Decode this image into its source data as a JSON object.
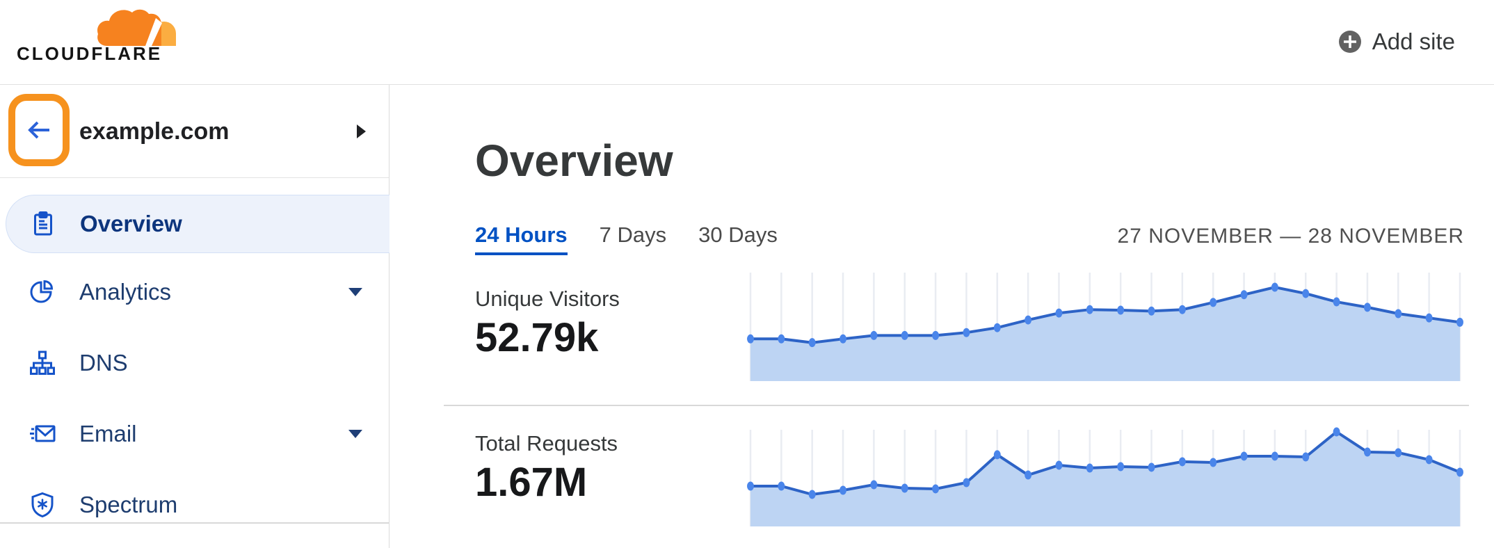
{
  "header": {
    "logo_text": "CLOUDFLARE",
    "add_site_label": "Add site"
  },
  "sidebar": {
    "site_name": "example.com",
    "items": [
      {
        "label": "Overview",
        "icon": "clipboard",
        "selected": true,
        "has_dropdown": false
      },
      {
        "label": "Analytics",
        "icon": "pie-chart",
        "selected": false,
        "has_dropdown": true
      },
      {
        "label": "DNS",
        "icon": "sitemap",
        "selected": false,
        "has_dropdown": false
      },
      {
        "label": "Email",
        "icon": "envelope",
        "selected": false,
        "has_dropdown": true
      },
      {
        "label": "Spectrum",
        "icon": "shield",
        "selected": false,
        "has_dropdown": false
      }
    ]
  },
  "main": {
    "title": "Overview",
    "tabs": [
      {
        "label": "24 Hours",
        "active": true
      },
      {
        "label": "7 Days",
        "active": false
      },
      {
        "label": "30 Days",
        "active": false
      }
    ],
    "date_range": "27 NOVEMBER — 28 NOVEMBER",
    "metrics": [
      {
        "label": "Unique Visitors",
        "value": "52.79k"
      },
      {
        "label": "Total Requests",
        "value": "1.67M"
      }
    ]
  },
  "colors": {
    "brand_orange": "#F6821F",
    "brand_orange_light": "#FBAD41",
    "annotation_orange": "#F6921E",
    "link_blue": "#0051c3",
    "sidebar_icon_blue": "#1553c9",
    "sidebar_text_navy": "#1e3d6f",
    "selected_pill_bg": "#edf2fb",
    "chart_grid": "#e9ecf2",
    "chart_area": "#bdd4f3",
    "chart_line": "#2d63c6",
    "chart_dot": "#4a85ea"
  },
  "chart_data": [
    {
      "type": "area",
      "title": "Unique Visitors",
      "total_displayed": "52.79k",
      "time_range": "24 Hours (27 November – 28 November)",
      "n_points": 24,
      "unit": "estimated unique visitors per interval (thousands), no axis labels shown",
      "values": [
        1.47,
        1.47,
        1.34,
        1.47,
        1.59,
        1.59,
        1.59,
        1.69,
        1.86,
        2.13,
        2.37,
        2.49,
        2.47,
        2.44,
        2.49,
        2.74,
        3.01,
        3.27,
        3.05,
        2.76,
        2.57,
        2.35,
        2.2,
        2.05
      ],
      "grid": "vertical gridlines only",
      "legend": false
    },
    {
      "type": "area",
      "title": "Total Requests",
      "total_displayed": "1.67M",
      "time_range": "24 Hours (27 November – 28 November)",
      "n_points": 24,
      "unit": "estimated requests per interval (thousands), no axis labels shown",
      "values": [
        48.6,
        48.6,
        38.6,
        43.6,
        50.3,
        46.1,
        45.3,
        52.8,
        86.4,
        62.0,
        73.8,
        70.4,
        72.1,
        71.3,
        78.0,
        77.1,
        84.7,
        84.7,
        83.8,
        114.0,
        89.7,
        88.9,
        80.5,
        65.4
      ],
      "grid": "vertical gridlines only",
      "legend": false
    }
  ]
}
